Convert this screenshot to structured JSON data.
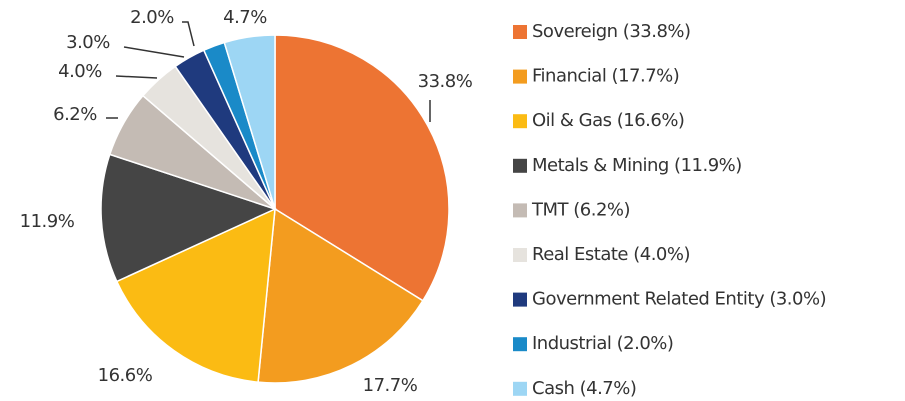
{
  "chart_data": {
    "type": "pie",
    "categories": [
      "Sovereign (33.8%)",
      "Financial (17.7%)",
      "Oil & Gas (16.6%)",
      "Metals & Mining (11.9%)",
      "TMT (6.2%)",
      "Real Estate (4.0%)",
      "Government Related Entity (3.0%)",
      "Industrial (2.0%)",
      "Cash (4.7%)"
    ],
    "values": [
      33.8,
      17.7,
      16.6,
      11.9,
      6.2,
      4.0,
      3.0,
      2.0,
      4.7
    ],
    "value_labels": [
      "33.8%",
      "17.7%",
      "16.6%",
      "11.9%",
      "6.2%",
      "4.0%",
      "3.0%",
      "2.0%",
      "4.7%"
    ],
    "colors": [
      "#ed7433",
      "#f39c1f",
      "#fbbb13",
      "#454545",
      "#c4bbb4",
      "#e6e3de",
      "#1f3a7e",
      "#1a8ac8",
      "#9dd6f4"
    ],
    "legend": "right"
  }
}
